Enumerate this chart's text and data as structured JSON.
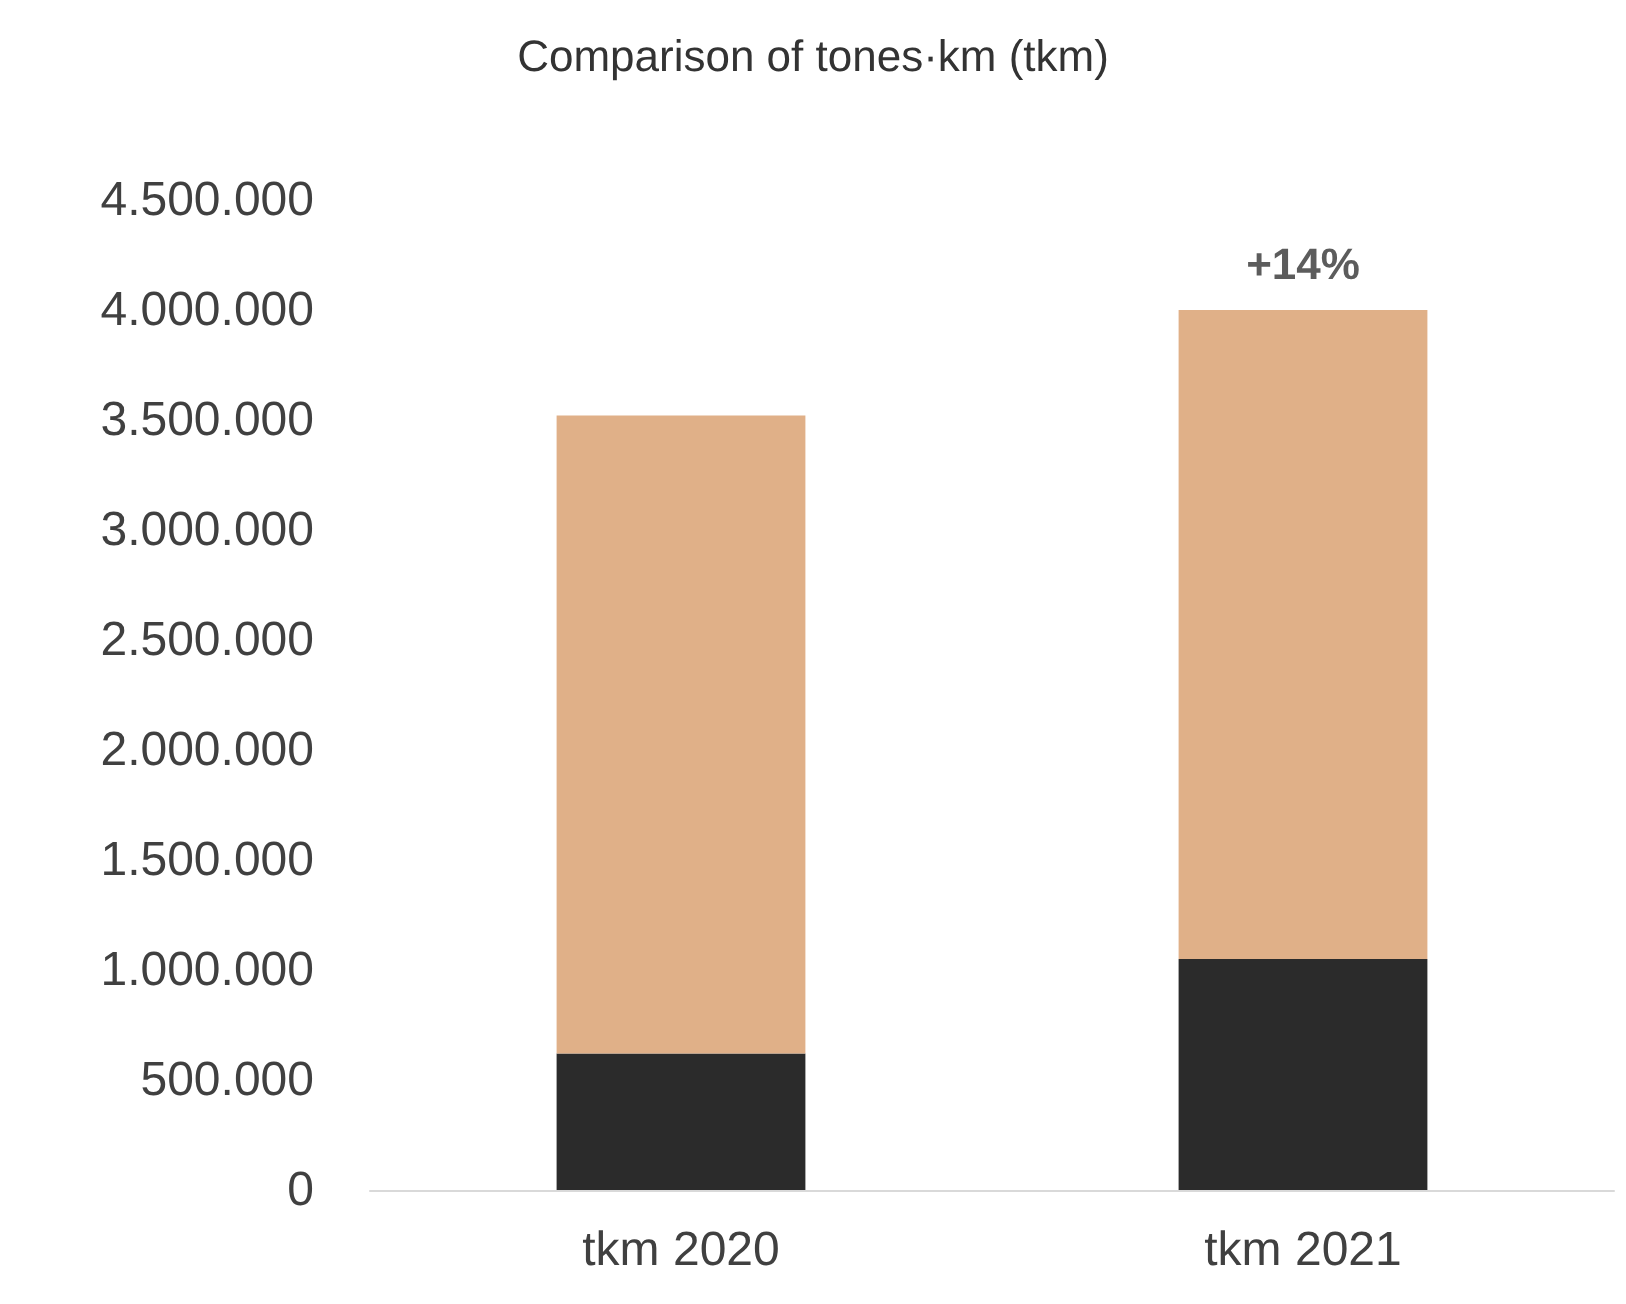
{
  "chart_data": {
    "type": "bar",
    "title": "Comparison of tones·km (tkm)",
    "categories": [
      "tkm 2020",
      "tkm 2021"
    ],
    "stacked": true,
    "series": [
      {
        "color": "#2b2b2b",
        "values": [
          620000,
          1050000
        ]
      },
      {
        "color": "#e0b088",
        "values": [
          2900000,
          2950000
        ]
      }
    ],
    "ylim": [
      0,
      4500000
    ],
    "yticks": [
      0,
      {
        "value": 500000,
        "label": "500.000"
      },
      {
        "value": 1000000,
        "label": "1.000.000"
      },
      {
        "value": 1500000,
        "label": "1.500.000"
      },
      {
        "value": 2000000,
        "label": "2.000.000"
      },
      {
        "value": 2500000,
        "label": "2.500.000"
      },
      {
        "value": 3000000,
        "label": "3.000.000"
      },
      {
        "value": 3500000,
        "label": "3.500.000"
      },
      {
        "value": 4000000,
        "label": "4.000.000"
      },
      {
        "value": 4500000,
        "label": "4.500.000"
      }
    ],
    "grid": false,
    "annotations": [
      {
        "text": "+14%",
        "x": "tkm 2021",
        "y": 4000000
      }
    ]
  }
}
